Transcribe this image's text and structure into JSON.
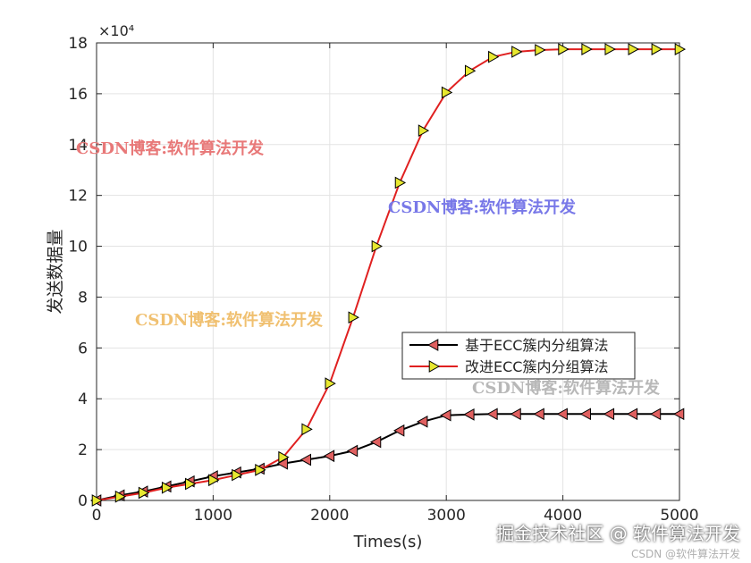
{
  "chart_data": {
    "type": "line",
    "xlabel": "Times(s)",
    "ylabel": "发送数据量",
    "xlim": [
      0,
      5000
    ],
    "ylim": [
      0,
      18
    ],
    "xticks": [
      0,
      1000,
      2000,
      3000,
      4000,
      5000
    ],
    "yticks": [
      0,
      2,
      4,
      6,
      8,
      10,
      12,
      14,
      16,
      18
    ],
    "y_exponent": "×10⁴",
    "grid": true,
    "legend_position": "lower-right",
    "x": [
      0,
      200,
      400,
      600,
      800,
      1000,
      1200,
      1400,
      1600,
      1800,
      2000,
      2200,
      2400,
      2600,
      2800,
      3000,
      3200,
      3400,
      3600,
      3800,
      4000,
      4200,
      4400,
      4600,
      4800,
      5000
    ],
    "series": [
      {
        "name": "基于ECC簇内分组算法",
        "color": "#000000",
        "marker_color": "#e06060",
        "marker": "left-triangle",
        "values": [
          0,
          0.2,
          0.35,
          0.55,
          0.75,
          0.95,
          1.1,
          1.25,
          1.45,
          1.6,
          1.75,
          1.95,
          2.3,
          2.75,
          3.1,
          3.35,
          3.38,
          3.4,
          3.4,
          3.4,
          3.4,
          3.4,
          3.4,
          3.4,
          3.4,
          3.4
        ]
      },
      {
        "name": "改进ECC簇内分组算法",
        "color": "#e02020",
        "marker_color": "#e8e830",
        "marker": "right-triangle",
        "values": [
          0,
          0.15,
          0.3,
          0.5,
          0.65,
          0.8,
          1.0,
          1.2,
          1.7,
          2.8,
          4.6,
          7.2,
          10.0,
          12.5,
          14.55,
          16.05,
          16.9,
          17.45,
          17.65,
          17.72,
          17.75,
          17.75,
          17.75,
          17.75,
          17.75,
          17.75
        ]
      }
    ]
  },
  "watermarks": [
    {
      "text": "CSDN博客:软件算法开发",
      "color": "#e87878"
    },
    {
      "text": "CSDN博客:软件算法开发",
      "color": "#7878e8"
    },
    {
      "text": "CSDN博客:软件算法开发",
      "color": "#f0c070"
    },
    {
      "text": "CSDN博客:软件算法开发",
      "color": "#b8b8b8"
    }
  ],
  "footer": {
    "main": "掘金技术社区 @ 软件算法开发",
    "sub": "CSDN @软件算法开发"
  }
}
